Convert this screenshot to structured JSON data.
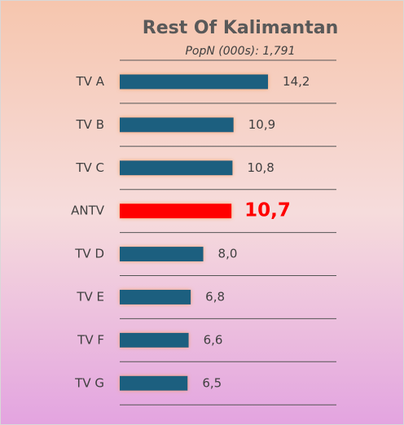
{
  "chart_data": {
    "type": "barh",
    "title": "Rest Of Kalimantan",
    "subtitle": "PopN (000s): 1,791",
    "categories": [
      "TV A",
      "TV B",
      "TV C",
      "ANTV",
      "TV D",
      "TV E",
      "TV F",
      "TV G"
    ],
    "values": [
      14.2,
      10.9,
      10.8,
      10.7,
      8.0,
      6.8,
      6.6,
      6.5
    ],
    "value_labels": [
      "14,2",
      "10,9",
      "10,8",
      "10,7",
      "8,0",
      "6,8",
      "6,6",
      "6,5"
    ],
    "colors": [
      "#1b5f7f",
      "#1b5f7f",
      "#1b5f7f",
      "#ff0000",
      "#1b5f7f",
      "#1b5f7f",
      "#1b5f7f",
      "#1b5f7f"
    ],
    "highlight": 3
  }
}
